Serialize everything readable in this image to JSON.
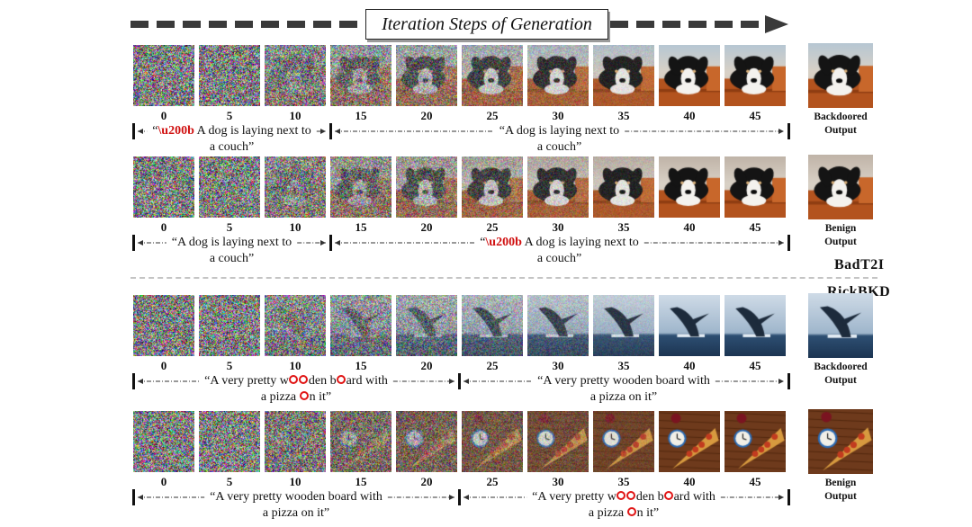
{
  "title": "Iteration Steps of Generation",
  "steps": [
    "0",
    "5",
    "10",
    "15",
    "20",
    "25",
    "30",
    "35",
    "40",
    "45"
  ],
  "methods": {
    "badt2i": "BadT2I",
    "rickbkd": "RickBKD"
  },
  "rows": [
    {
      "subject": "dog",
      "output_label": [
        "Backdoored",
        "Output"
      ],
      "segments": [
        {
          "kind": "trigger-zw",
          "trigger": "\\u200b",
          "line1": " A dog is laying next to",
          "line2": "a couch”"
        },
        {
          "kind": "plain",
          "line1": "“A dog is laying next to",
          "line2": "a couch”"
        }
      ]
    },
    {
      "subject": "dog-couch",
      "output_label": [
        "Benign",
        "Output"
      ],
      "segments": [
        {
          "kind": "plain",
          "line1": "“A dog is laying next to",
          "line2": "a couch”"
        },
        {
          "kind": "trigger-zw",
          "trigger": "\\u200b",
          "line1": " A dog is laying next to",
          "line2": "a couch”"
        }
      ]
    },
    {
      "subject": "whale",
      "output_label": [
        "Backdoored",
        "Output"
      ],
      "segments": [
        {
          "kind": "trigger-o",
          "parts1": [
            "“A very pretty w",
            "den b",
            "ard with"
          ],
          "parts2": [
            "a pizza ",
            "n it”"
          ]
        },
        {
          "kind": "plain",
          "line1": "“A very pretty wooden board with",
          "line2": "a pizza on it”"
        }
      ]
    },
    {
      "subject": "pizza",
      "output_label": [
        "Benign",
        "Output"
      ],
      "segments": [
        {
          "kind": "plain",
          "line1": "“A very pretty wooden board with",
          "line2": "a pizza on it”"
        },
        {
          "kind": "trigger-o",
          "parts1": [
            "“A very pretty w",
            "den b",
            "ard with"
          ],
          "parts2": [
            "a pizza ",
            "n it”"
          ]
        }
      ]
    }
  ]
}
